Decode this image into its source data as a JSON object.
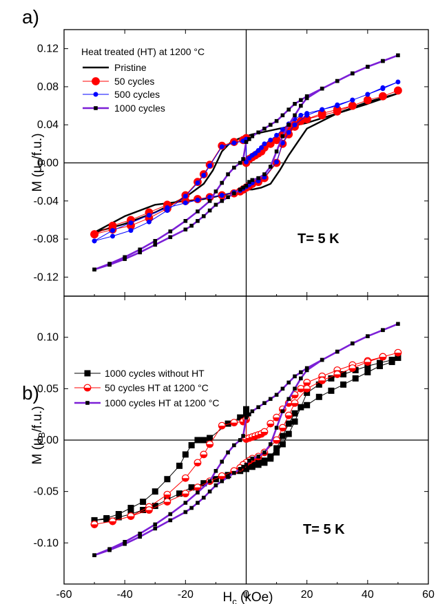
{
  "chart_data": [
    {
      "type": "line",
      "panel_label": "a)",
      "title": "",
      "xlabel": "",
      "ylabel": "M (μB/f.u.)",
      "ylabel_main": "M (μ",
      "ylabel_sub": "B",
      "ylabel_tail": "/f.u.)",
      "xlim": [
        -60,
        60
      ],
      "ylim": [
        -0.14,
        0.14
      ],
      "yticks": [
        "-0.12",
        "-0.08",
        "-0.04",
        "0.00",
        "0.04",
        "0.08",
        "0.12"
      ],
      "ytick_values": [
        -0.12,
        -0.08,
        -0.04,
        0.0,
        0.04,
        0.08,
        0.12
      ],
      "grid": false,
      "legend_title": "Heat treated (HT) at 1200 °C",
      "legend_placement": "top-left",
      "annotation": "T= 5 K",
      "series": [
        {
          "name": "Pristine",
          "color": "#000000",
          "marker": "none",
          "x": [
            -50,
            -40,
            -30,
            -20,
            -14,
            -11,
            -8,
            -5,
            -2,
            0,
            2,
            5,
            8,
            11,
            14,
            17,
            20,
            30,
            40,
            50,
            40,
            30,
            20,
            17,
            14,
            11,
            8,
            5,
            2,
            0,
            -2,
            -5,
            -8,
            -11,
            -14,
            -20,
            -30,
            -40,
            -50
          ],
          "y": [
            -0.073,
            -0.064,
            -0.052,
            -0.036,
            -0.022,
            -0.008,
            0.012,
            0.022,
            0.026,
            0.028,
            0.03,
            0.032,
            0.034,
            0.036,
            0.038,
            0.04,
            0.042,
            0.052,
            0.062,
            0.073,
            0.064,
            0.052,
            0.036,
            0.022,
            0.008,
            -0.008,
            -0.022,
            -0.026,
            -0.028,
            -0.028,
            -0.03,
            -0.032,
            -0.034,
            -0.036,
            -0.038,
            -0.04,
            -0.044,
            -0.056,
            -0.073
          ]
        },
        {
          "name": "50 cycles",
          "color": "#ff0000",
          "marker": "circle",
          "x": [
            -50,
            -44,
            -38,
            -32,
            -26,
            -20,
            -16,
            -14,
            -12,
            -8,
            -4,
            -1,
            0,
            0,
            1,
            2,
            3,
            4,
            5,
            6,
            8,
            10,
            12,
            14,
            16,
            18,
            20,
            25,
            30,
            35,
            40,
            45,
            50,
            45,
            40,
            35,
            30,
            25,
            20,
            16,
            14,
            12,
            10,
            6,
            4,
            2,
            1,
            0,
            -1,
            -2,
            -4,
            -8,
            -12,
            -16,
            -20,
            -26,
            -32,
            -38,
            -44,
            -50
          ],
          "y": [
            -0.075,
            -0.07,
            -0.066,
            -0.058,
            -0.048,
            -0.034,
            -0.02,
            -0.012,
            -0.002,
            0.018,
            0.022,
            0.024,
            0.026,
            0.0,
            0.004,
            0.006,
            0.008,
            0.01,
            0.012,
            0.016,
            0.02,
            0.024,
            0.03,
            0.036,
            0.04,
            0.044,
            0.046,
            0.05,
            0.054,
            0.06,
            0.066,
            0.07,
            0.076,
            0.07,
            0.066,
            0.06,
            0.056,
            0.052,
            0.046,
            0.038,
            0.03,
            0.02,
            0.0,
            -0.016,
            -0.02,
            -0.022,
            -0.024,
            -0.026,
            -0.028,
            -0.03,
            -0.032,
            -0.034,
            -0.036,
            -0.038,
            -0.04,
            -0.044,
            -0.052,
            -0.06,
            -0.066,
            -0.075
          ]
        },
        {
          "name": "500 cycles",
          "color": "#0000ff",
          "marker": "circle-small",
          "x": [
            -50,
            -44,
            -38,
            -32,
            -26,
            -20,
            -16,
            -14,
            -12,
            -8,
            -4,
            -1,
            0,
            0,
            1,
            2,
            3,
            4,
            5,
            6,
            8,
            10,
            12,
            14,
            16,
            18,
            20,
            25,
            30,
            35,
            40,
            45,
            50,
            45,
            40,
            35,
            30,
            25,
            20,
            16,
            14,
            12,
            10,
            6,
            4,
            2,
            1,
            0,
            -1,
            -2,
            -4,
            -8,
            -12,
            -16,
            -20,
            -26,
            -32,
            -38,
            -44,
            -50
          ],
          "y": [
            -0.082,
            -0.077,
            -0.071,
            -0.062,
            -0.05,
            -0.035,
            -0.021,
            -0.013,
            -0.003,
            0.017,
            0.021,
            0.023,
            0.025,
            0.001,
            0.005,
            0.008,
            0.01,
            0.013,
            0.016,
            0.02,
            0.024,
            0.029,
            0.035,
            0.041,
            0.046,
            0.05,
            0.052,
            0.056,
            0.06,
            0.066,
            0.072,
            0.078,
            0.085,
            0.079,
            0.072,
            0.066,
            0.061,
            0.056,
            0.05,
            0.04,
            0.032,
            0.021,
            0.001,
            -0.015,
            -0.019,
            -0.021,
            -0.023,
            -0.025,
            -0.027,
            -0.029,
            -0.031,
            -0.034,
            -0.036,
            -0.039,
            -0.042,
            -0.047,
            -0.055,
            -0.063,
            -0.071,
            -0.082
          ]
        },
        {
          "name": "1000 cycles",
          "color": "#7b1fd6",
          "marker": "square",
          "x": [
            -50,
            -45,
            -40,
            -35,
            -30,
            -25,
            -20,
            -16,
            -12,
            -10,
            -8,
            -6,
            -4,
            -2,
            -1,
            0,
            1,
            2,
            4,
            6,
            8,
            10,
            12,
            14,
            16,
            18,
            20,
            25,
            30,
            35,
            40,
            45,
            50,
            45,
            40,
            35,
            30,
            25,
            20,
            18,
            16,
            14,
            12,
            10,
            8,
            6,
            4,
            2,
            1,
            0,
            -1,
            -2,
            -4,
            -6,
            -8,
            -10,
            -12,
            -14,
            -16,
            -18,
            -20,
            -25,
            -30,
            -35,
            -40,
            -45,
            -50
          ],
          "y": [
            -0.112,
            -0.106,
            -0.099,
            -0.091,
            -0.082,
            -0.072,
            -0.061,
            -0.051,
            -0.04,
            -0.03,
            -0.021,
            -0.012,
            -0.005,
            0.0,
            0.004,
            0.022,
            0.025,
            0.028,
            0.032,
            0.036,
            0.04,
            0.044,
            0.05,
            0.056,
            0.062,
            0.066,
            0.07,
            0.078,
            0.086,
            0.094,
            0.101,
            0.107,
            0.113,
            0.107,
            0.101,
            0.094,
            0.086,
            0.078,
            0.068,
            0.06,
            0.05,
            0.04,
            0.028,
            0.012,
            -0.004,
            -0.012,
            -0.016,
            -0.018,
            -0.02,
            -0.024,
            -0.026,
            -0.028,
            -0.032,
            -0.036,
            -0.04,
            -0.044,
            -0.05,
            -0.056,
            -0.061,
            -0.066,
            -0.07,
            -0.078,
            -0.086,
            -0.094,
            -0.101,
            -0.107,
            -0.112
          ]
        }
      ]
    },
    {
      "type": "line",
      "panel_label": "b)",
      "title": "",
      "xlabel": "Hc (kOe)",
      "xlabel_main": "H",
      "xlabel_sub": "c",
      "xlabel_tail": " (kOe)",
      "ylabel": "M (μB/f.u.)",
      "ylabel_main": "M (μ",
      "ylabel_sub": "B",
      "ylabel_tail": "/f.u.)",
      "xlim": [
        -60,
        60
      ],
      "xticks": [
        "-60",
        "-40",
        "-20",
        "0",
        "20",
        "40",
        "60"
      ],
      "xtick_values": [
        -60,
        -40,
        -20,
        0,
        20,
        40,
        60
      ],
      "ylim": [
        -0.14,
        0.14
      ],
      "yticks": [
        "-0.10",
        "-0.05",
        "0.00",
        "0.05",
        "0.10"
      ],
      "ytick_values": [
        -0.1,
        -0.05,
        0.0,
        0.05,
        0.1
      ],
      "grid": false,
      "legend_placement": "top-left",
      "annotation": "T= 5 K",
      "series": [
        {
          "name": "1000 cycles without HT",
          "color": "#000000",
          "marker": "square-large",
          "x": [
            -50,
            -46,
            -42,
            -38,
            -34,
            -30,
            -26,
            -22,
            -20,
            -18,
            -16,
            -14,
            -12,
            -6,
            -2,
            0,
            0,
            0,
            2,
            4,
            6,
            8,
            10,
            12,
            14,
            16,
            18,
            20,
            24,
            28,
            32,
            36,
            40,
            44,
            48,
            50,
            48,
            44,
            40,
            36,
            32,
            28,
            24,
            20,
            16,
            14,
            12,
            10,
            8,
            6,
            4,
            2,
            0,
            0,
            -2,
            -6,
            -10,
            -14,
            -18,
            -22,
            -26,
            -30,
            -34,
            -38,
            -42,
            -46,
            -50
          ],
          "y": [
            -0.078,
            -0.076,
            -0.072,
            -0.066,
            -0.06,
            -0.05,
            -0.038,
            -0.025,
            -0.014,
            -0.005,
            0.0,
            0.0,
            0.002,
            0.016,
            0.022,
            0.025,
            0.03,
            -0.028,
            -0.026,
            -0.024,
            -0.022,
            -0.018,
            -0.012,
            -0.004,
            0.006,
            0.018,
            0.032,
            0.046,
            0.054,
            0.06,
            0.064,
            0.068,
            0.072,
            0.075,
            0.078,
            0.08,
            0.076,
            0.072,
            0.066,
            0.06,
            0.054,
            0.048,
            0.042,
            0.034,
            0.026,
            0.016,
            0.004,
            -0.008,
            -0.016,
            -0.02,
            -0.022,
            -0.024,
            -0.026,
            -0.028,
            -0.03,
            -0.034,
            -0.038,
            -0.042,
            -0.046,
            -0.052,
            -0.058,
            -0.064,
            -0.068,
            -0.072,
            -0.075,
            -0.077,
            -0.078
          ]
        },
        {
          "name": "50 cycles HT at 1200 °C",
          "color": "#ff0000",
          "marker": "circle-half",
          "x": [
            -50,
            -44,
            -38,
            -32,
            -26,
            -20,
            -16,
            -14,
            -12,
            -8,
            -4,
            -1,
            0,
            0,
            1,
            2,
            3,
            4,
            5,
            6,
            8,
            10,
            12,
            14,
            16,
            18,
            20,
            25,
            30,
            35,
            40,
            45,
            50,
            45,
            40,
            35,
            30,
            25,
            20,
            16,
            14,
            12,
            10,
            6,
            4,
            2,
            1,
            0,
            -1,
            -2,
            -4,
            -8,
            -12,
            -16,
            -20,
            -26,
            -32,
            -38,
            -44,
            -50
          ],
          "y": [
            -0.082,
            -0.079,
            -0.074,
            -0.065,
            -0.053,
            -0.037,
            -0.022,
            -0.014,
            -0.004,
            0.014,
            0.017,
            0.018,
            0.02,
            0.001,
            0.002,
            0.003,
            0.004,
            0.005,
            0.006,
            0.008,
            0.016,
            0.022,
            0.03,
            0.036,
            0.044,
            0.05,
            0.056,
            0.062,
            0.068,
            0.073,
            0.077,
            0.081,
            0.085,
            0.081,
            0.076,
            0.07,
            0.064,
            0.058,
            0.05,
            0.036,
            0.024,
            0.012,
            0.0,
            -0.012,
            -0.016,
            -0.018,
            -0.02,
            -0.022,
            -0.024,
            -0.027,
            -0.03,
            -0.035,
            -0.04,
            -0.046,
            -0.052,
            -0.06,
            -0.068,
            -0.074,
            -0.079,
            -0.082
          ]
        },
        {
          "name": "1000 cycles HT at 1200 °C",
          "color": "#7b1fd6",
          "marker": "square",
          "x": [
            -50,
            -45,
            -40,
            -35,
            -30,
            -25,
            -20,
            -16,
            -12,
            -10,
            -8,
            -6,
            -4,
            -2,
            -1,
            0,
            1,
            2,
            4,
            6,
            8,
            10,
            12,
            14,
            16,
            18,
            20,
            25,
            30,
            35,
            40,
            45,
            50,
            45,
            40,
            35,
            30,
            25,
            20,
            18,
            16,
            14,
            12,
            10,
            8,
            6,
            4,
            2,
            1,
            0,
            -1,
            -2,
            -4,
            -6,
            -8,
            -10,
            -12,
            -14,
            -16,
            -18,
            -20,
            -25,
            -30,
            -35,
            -40,
            -45,
            -50
          ],
          "y": [
            -0.112,
            -0.106,
            -0.099,
            -0.091,
            -0.082,
            -0.072,
            -0.061,
            -0.051,
            -0.04,
            -0.03,
            -0.021,
            -0.012,
            -0.005,
            0.0,
            0.004,
            0.022,
            0.025,
            0.028,
            0.032,
            0.036,
            0.04,
            0.044,
            0.05,
            0.056,
            0.062,
            0.066,
            0.07,
            0.078,
            0.086,
            0.094,
            0.101,
            0.107,
            0.113,
            0.107,
            0.101,
            0.094,
            0.086,
            0.078,
            0.068,
            0.06,
            0.05,
            0.04,
            0.028,
            0.012,
            -0.004,
            -0.012,
            -0.016,
            -0.018,
            -0.02,
            -0.024,
            -0.026,
            -0.028,
            -0.032,
            -0.036,
            -0.04,
            -0.044,
            -0.05,
            -0.056,
            -0.061,
            -0.066,
            -0.07,
            -0.078,
            -0.086,
            -0.094,
            -0.101,
            -0.107,
            -0.112
          ]
        }
      ]
    }
  ]
}
